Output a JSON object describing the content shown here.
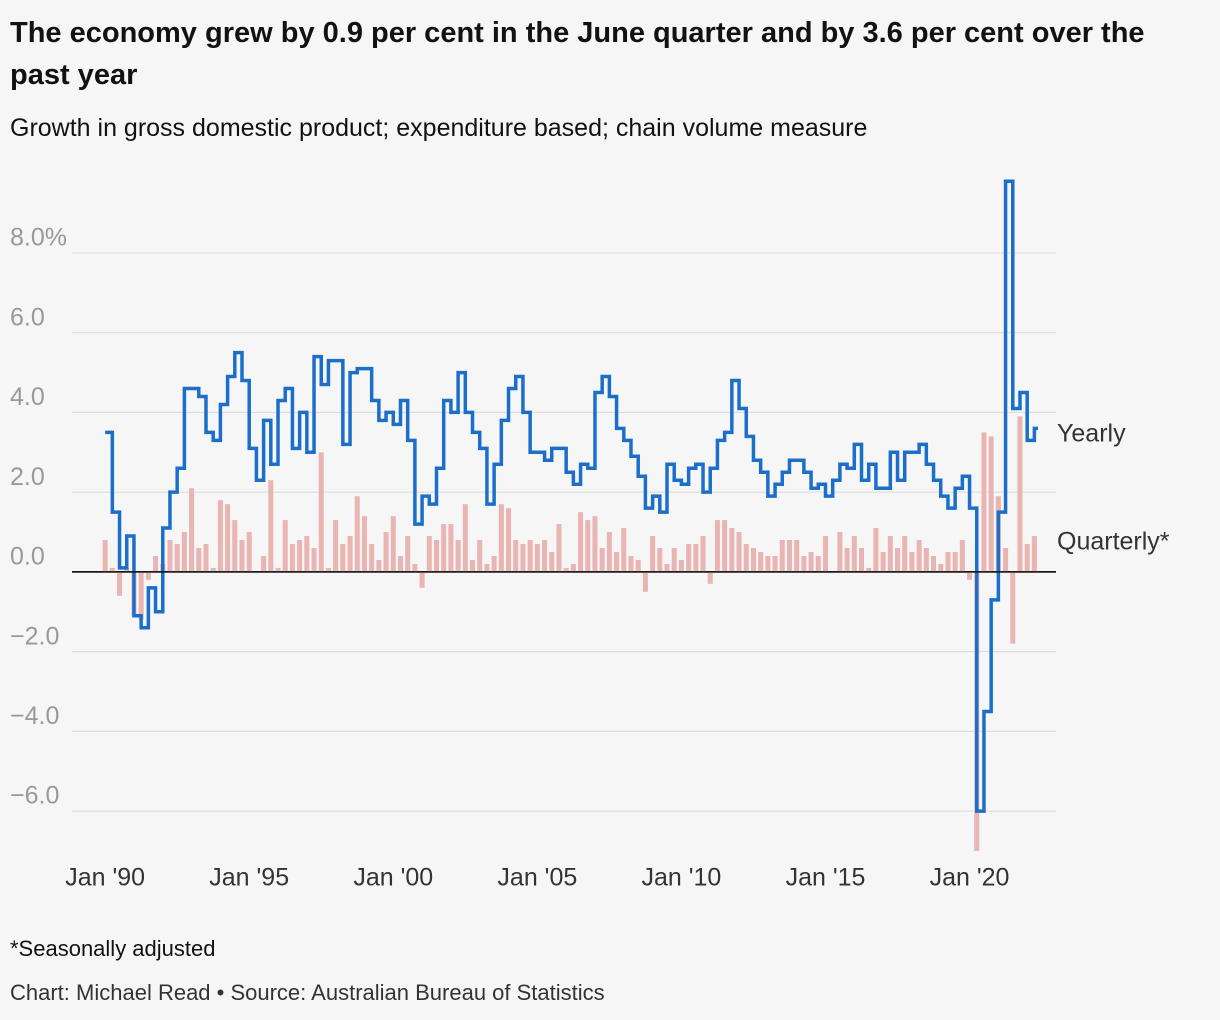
{
  "chart_data": {
    "type": "line",
    "title": "The economy grew by 0.9 per cent in the June quarter and by 3.6 per cent over the past year",
    "subtitle": "Growth in gross domestic product; expenditure based; chain volume measure",
    "footnote": "*Seasonally adjusted",
    "source": "Chart: Michael Read • Source: Australian Bureau of Statistics",
    "x": [
      1990,
      1990.25,
      1990.5,
      1990.75,
      1991,
      1991.25,
      1991.5,
      1991.75,
      1992,
      1992.25,
      1992.5,
      1992.75,
      1993,
      1993.25,
      1993.5,
      1993.75,
      1994,
      1994.25,
      1994.5,
      1994.75,
      1995,
      1995.25,
      1995.5,
      1995.75,
      1996,
      1996.25,
      1996.5,
      1996.75,
      1997,
      1997.25,
      1997.5,
      1997.75,
      1998,
      1998.25,
      1998.5,
      1998.75,
      1999,
      1999.25,
      1999.5,
      1999.75,
      2000,
      2000.25,
      2000.5,
      2000.75,
      2001,
      2001.25,
      2001.5,
      2001.75,
      2002,
      2002.25,
      2002.5,
      2002.75,
      2003,
      2003.25,
      2003.5,
      2003.75,
      2004,
      2004.25,
      2004.5,
      2004.75,
      2005,
      2005.25,
      2005.5,
      2005.75,
      2006,
      2006.25,
      2006.5,
      2006.75,
      2007,
      2007.25,
      2007.5,
      2007.75,
      2008,
      2008.25,
      2008.5,
      2008.75,
      2009,
      2009.25,
      2009.5,
      2009.75,
      2010,
      2010.25,
      2010.5,
      2010.75,
      2011,
      2011.25,
      2011.5,
      2011.75,
      2012,
      2012.25,
      2012.5,
      2012.75,
      2013,
      2013.25,
      2013.5,
      2013.75,
      2014,
      2014.25,
      2014.5,
      2014.75,
      2015,
      2015.25,
      2015.5,
      2015.75,
      2016,
      2016.25,
      2016.5,
      2016.75,
      2017,
      2017.25,
      2017.5,
      2017.75,
      2018,
      2018.25,
      2018.5,
      2018.75,
      2019,
      2019.25,
      2019.5,
      2019.75,
      2020,
      2020.25,
      2020.5,
      2020.75,
      2021,
      2021.25,
      2021.5,
      2021.75,
      2022,
      2022.25
    ],
    "series": [
      {
        "name": "Quarterly*",
        "type": "bar",
        "color": "#e9b5b3",
        "values": [
          0.8,
          0.1,
          -0.6,
          0.1,
          -1.1,
          -1.2,
          -0.2,
          0.4,
          0.2,
          0.8,
          0.7,
          1.0,
          2.1,
          0.6,
          0.7,
          0.1,
          1.8,
          1.7,
          1.3,
          0.8,
          1.0,
          0.0,
          0.4,
          2.3,
          0.1,
          1.3,
          0.7,
          0.8,
          0.9,
          0.6,
          3.0,
          0.1,
          1.3,
          0.7,
          0.9,
          1.9,
          1.4,
          0.7,
          0.3,
          1.0,
          1.4,
          0.4,
          0.9,
          0.2,
          -0.4,
          0.9,
          0.8,
          1.2,
          1.2,
          0.8,
          1.7,
          0.3,
          0.8,
          0.2,
          0.4,
          1.7,
          1.6,
          0.8,
          0.7,
          0.8,
          0.7,
          0.8,
          0.5,
          1.2,
          0.1,
          0.2,
          1.5,
          1.3,
          1.4,
          0.6,
          1.0,
          0.5,
          1.1,
          0.4,
          0.3,
          -0.5,
          0.9,
          0.6,
          0.2,
          0.6,
          0.3,
          0.7,
          0.7,
          0.9,
          -0.3,
          1.3,
          1.3,
          1.1,
          1.0,
          0.7,
          0.6,
          0.5,
          0.4,
          0.4,
          0.8,
          0.8,
          0.8,
          0.4,
          0.5,
          0.4,
          0.9,
          0.0,
          1.0,
          0.6,
          0.9,
          0.6,
          0.1,
          1.1,
          0.5,
          0.9,
          0.6,
          0.9,
          0.5,
          0.8,
          0.6,
          0.4,
          0.2,
          0.5,
          0.5,
          0.8,
          -0.2,
          -7.0,
          3.5,
          3.4,
          1.9,
          0.6,
          -1.8,
          3.9,
          0.7,
          0.9
        ]
      },
      {
        "name": "Yearly",
        "type": "line",
        "color": "#1b6fca",
        "values": [
          3.5,
          1.5,
          0.1,
          0.9,
          -1.1,
          -1.4,
          -0.4,
          -1.0,
          1.1,
          2.0,
          2.6,
          4.6,
          4.6,
          4.4,
          3.5,
          3.3,
          4.2,
          4.9,
          5.5,
          4.8,
          3.1,
          2.3,
          3.8,
          2.7,
          4.3,
          4.6,
          3.1,
          4.0,
          3.0,
          5.4,
          4.7,
          5.3,
          5.3,
          3.2,
          5.0,
          5.1,
          5.1,
          4.3,
          3.8,
          4.0,
          3.7,
          4.3,
          3.3,
          1.2,
          1.9,
          1.7,
          2.6,
          4.3,
          4.0,
          5.0,
          4.0,
          3.5,
          3.1,
          1.7,
          2.7,
          3.8,
          4.6,
          4.9,
          4.0,
          3.0,
          3.0,
          2.8,
          3.1,
          3.1,
          2.5,
          2.2,
          2.7,
          2.6,
          4.5,
          4.9,
          4.4,
          3.6,
          3.3,
          2.9,
          2.4,
          1.6,
          1.9,
          1.5,
          2.7,
          2.3,
          2.2,
          2.6,
          2.7,
          2.0,
          2.6,
          3.3,
          3.5,
          4.8,
          4.1,
          3.4,
          2.8,
          2.5,
          1.9,
          2.2,
          2.5,
          2.8,
          2.8,
          2.5,
          2.1,
          2.2,
          1.9,
          2.3,
          2.7,
          2.6,
          3.2,
          2.3,
          2.7,
          2.1,
          2.1,
          3.0,
          2.3,
          3.0,
          3.0,
          3.2,
          2.7,
          2.3,
          1.9,
          1.6,
          2.1,
          2.4,
          1.6,
          -6.0,
          -3.5,
          -0.7,
          1.5,
          9.8,
          4.1,
          4.5,
          3.3,
          3.6
        ]
      }
    ],
    "xlim": [
      1988.85,
      2023
    ],
    "xticks": [
      {
        "value": 1990,
        "label": "Jan '90"
      },
      {
        "value": 1995,
        "label": "Jan '95"
      },
      {
        "value": 2000,
        "label": "Jan '00"
      },
      {
        "value": 2005,
        "label": "Jan '05"
      },
      {
        "value": 2010,
        "label": "Jan '10"
      },
      {
        "value": 2015,
        "label": "Jan '15"
      },
      {
        "value": 2020,
        "label": "Jan '20"
      }
    ],
    "ylim": [
      -7,
      9.85
    ],
    "yticks": [
      {
        "value": -6,
        "label": "−6.0"
      },
      {
        "value": -4,
        "label": "−4.0"
      },
      {
        "value": -2,
        "label": "−2.0"
      },
      {
        "value": 0,
        "label": "0.0"
      },
      {
        "value": 2,
        "label": "2.0"
      },
      {
        "value": 4,
        "label": "4.0"
      },
      {
        "value": 6,
        "label": "6.0"
      },
      {
        "value": 8,
        "label": "8.0%"
      }
    ],
    "grid": true
  }
}
